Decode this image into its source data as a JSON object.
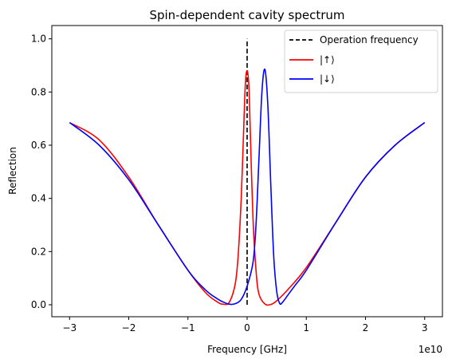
{
  "chart_data": {
    "type": "line",
    "title": "Spin-dependent cavity spectrum",
    "xlabel": "Frequency [GHz]",
    "ylabel": "Reflection",
    "x_offset_label": "1e10",
    "xlim": [
      -33000000000.0,
      33000000000.0
    ],
    "ylim": [
      -0.045,
      1.05
    ],
    "x_ticks": [
      -30000000000.0,
      -20000000000.0,
      -10000000000.0,
      0,
      10000000000.0,
      20000000000.0,
      30000000000.0
    ],
    "x_tick_labels": [
      "−3",
      "−2",
      "−1",
      "0",
      "1",
      "2",
      "3"
    ],
    "y_ticks": [
      0.0,
      0.2,
      0.4,
      0.6,
      0.8,
      1.0
    ],
    "y_tick_labels": [
      "0.0",
      "0.2",
      "0.4",
      "0.6",
      "0.8",
      "1.0"
    ],
    "grid": false,
    "legend_position": "top-right",
    "series": [
      {
        "name": "Operation frequency",
        "color": "#000000",
        "style": "dashed",
        "x": [
          0,
          0
        ],
        "y": [
          0.0,
          1.0
        ]
      },
      {
        "name": "|↑⟩",
        "color": "#ff0000",
        "style": "solid",
        "x": [
          -30000000000.0,
          -25000000000.0,
          -20000000000.0,
          -15000000000.0,
          -10000000000.0,
          -7000000000.0,
          -5000000000.0,
          -4000000000.0,
          -3000000000.0,
          -2000000000.0,
          -1500000000.0,
          -1000000000.0,
          -600000000.0,
          -300000000.0,
          0,
          300000000.0,
          600000000.0,
          1000000000.0,
          1500000000.0,
          2000000000.0,
          3000000000.0,
          4000000000.0,
          5000000000.0,
          7000000000.0,
          10000000000.0,
          15000000000.0,
          20000000000.0,
          25000000000.0,
          30000000000.0
        ],
        "y": [
          0.685,
          0.62,
          0.48,
          0.3,
          0.13,
          0.045,
          0.01,
          0.002,
          0.01,
          0.08,
          0.19,
          0.4,
          0.65,
          0.83,
          0.88,
          0.82,
          0.6,
          0.32,
          0.13,
          0.04,
          0.003,
          0.001,
          0.015,
          0.06,
          0.14,
          0.31,
          0.48,
          0.6,
          0.685
        ]
      },
      {
        "name": "|↓⟩",
        "color": "#0000ff",
        "style": "solid",
        "x": [
          -30000000000.0,
          -25000000000.0,
          -20000000000.0,
          -15000000000.0,
          -10000000000.0,
          -7000000000.0,
          -5000000000.0,
          -4000000000.0,
          -3000000000.0,
          -2000000000.0,
          -1000000000.0,
          0,
          1000000000.0,
          1500000000.0,
          2000000000.0,
          2500000000.0,
          3000000000.0,
          3500000000.0,
          4000000000.0,
          4500000000.0,
          5000000000.0,
          5500000000.0,
          6000000000.0,
          7000000000.0,
          8000000000.0,
          10000000000.0,
          15000000000.0,
          20000000000.0,
          25000000000.0,
          30000000000.0
        ],
        "y": [
          0.685,
          0.6,
          0.47,
          0.3,
          0.13,
          0.055,
          0.022,
          0.01,
          0.002,
          0.004,
          0.02,
          0.07,
          0.16,
          0.3,
          0.55,
          0.8,
          0.885,
          0.75,
          0.45,
          0.18,
          0.05,
          0.005,
          0.01,
          0.04,
          0.07,
          0.13,
          0.31,
          0.48,
          0.6,
          0.685
        ]
      }
    ]
  }
}
